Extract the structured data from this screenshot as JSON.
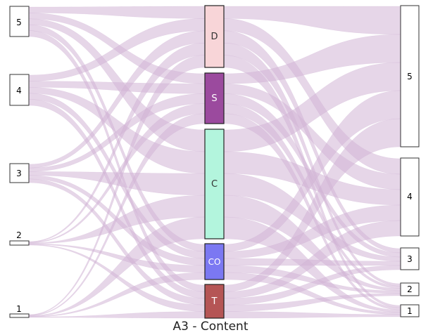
{
  "diagram": {
    "title": "A3 - Content",
    "left_nodes": [
      {
        "label": "5",
        "fill": "#ffffff"
      },
      {
        "label": "4",
        "fill": "#ffffff"
      },
      {
        "label": "3",
        "fill": "#ffffff"
      },
      {
        "label": "2",
        "fill": "#ffffff"
      },
      {
        "label": "1",
        "fill": "#ffffff"
      }
    ],
    "middle_nodes": [
      {
        "label": "D",
        "fill": "#f8d5d8",
        "text_color": "#333333"
      },
      {
        "label": "S",
        "fill": "#9b4a9e",
        "text_color": "#ffffff"
      },
      {
        "label": "C",
        "fill": "#b3f5dd",
        "text_color": "#333333"
      },
      {
        "label": "CO",
        "fill": "#7b78f2",
        "text_color": "#ffffff"
      },
      {
        "label": "T",
        "fill": "#b55555",
        "text_color": "#ffffff"
      }
    ],
    "right_nodes": [
      {
        "label": "5",
        "fill": "#ffffff"
      },
      {
        "label": "4",
        "fill": "#ffffff"
      },
      {
        "label": "3",
        "fill": "#ffffff"
      },
      {
        "label": "2",
        "fill": "#ffffff"
      },
      {
        "label": "1",
        "fill": "#ffffff"
      }
    ],
    "link_color": "#d2b4d6"
  }
}
